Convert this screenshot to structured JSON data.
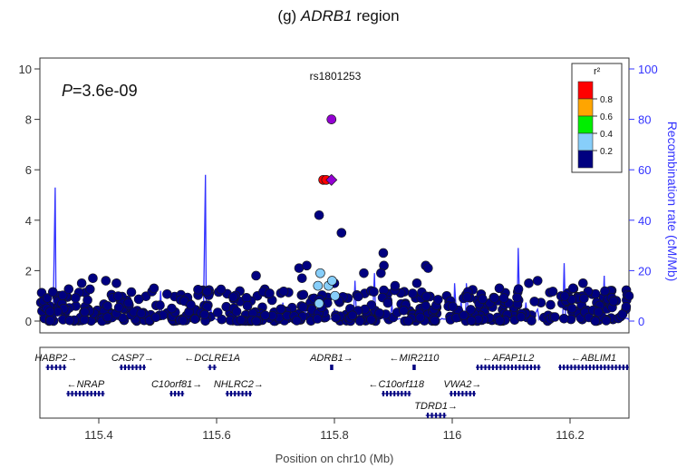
{
  "figure": {
    "title_prefix": "(g) ",
    "title_gene": "ADRB1",
    "title_suffix": " region"
  },
  "chart_data": {
    "type": "scatter",
    "title": "rs1801253",
    "pvalue_label": {
      "italic": "P",
      "rest": "=3.6e-09"
    },
    "xlabel": "Position on chr10 (Mb)",
    "ylabel_right": "Recombination rate (cM/Mb)",
    "xlim": [
      115.3,
      116.3
    ],
    "ylim": [
      0,
      10
    ],
    "y2lim": [
      0,
      100
    ],
    "x_ticks": [
      "115.4",
      "115.6",
      "115.8",
      "116",
      "116.2"
    ],
    "y_ticks": [
      "0",
      "2",
      "4",
      "6",
      "8",
      "10"
    ],
    "y2_ticks": [
      "0",
      "20",
      "40",
      "60",
      "80",
      "100"
    ],
    "grid": false,
    "legend": {
      "title": "r²",
      "placement": "top-right",
      "bins": [
        {
          "label": "0.8",
          "color": "#ff0000"
        },
        {
          "label": "0.6",
          "color": "#ffa500"
        },
        {
          "label": "0.4",
          "color": "#00ee00"
        },
        {
          "label": "0.2",
          "color": "#87cefa"
        },
        {
          "label": "",
          "color": "#000080"
        }
      ]
    },
    "colors": {
      "lead": "#9400d3",
      "recombination": "#3333ff",
      "high": "#ff0000",
      "low_mid": "#87cefa",
      "low": "#000080",
      "gene": "#000080"
    },
    "lead_snp": {
      "label": "rs1801253",
      "x": 115.795,
      "y": 8.0
    },
    "lead_diamond": {
      "x": 115.795,
      "y": 5.6
    },
    "highlighted_points": [
      {
        "x": 115.781,
        "y": 5.6,
        "r2": "high"
      },
      {
        "x": 115.786,
        "y": 5.6,
        "r2": "high"
      },
      {
        "x": 115.776,
        "y": 1.9,
        "r2": "low_mid"
      },
      {
        "x": 115.772,
        "y": 1.4,
        "r2": "low_mid"
      },
      {
        "x": 115.79,
        "y": 1.4,
        "r2": "low_mid"
      },
      {
        "x": 115.796,
        "y": 1.6,
        "r2": "low_mid"
      },
      {
        "x": 115.774,
        "y": 0.7,
        "r2": "low_mid"
      },
      {
        "x": 115.801,
        "y": 1.0,
        "r2": "low_mid"
      }
    ],
    "notable_points": [
      {
        "x": 115.774,
        "y": 4.2
      },
      {
        "x": 115.812,
        "y": 3.5
      },
      {
        "x": 115.883,
        "y": 2.7
      },
      {
        "x": 115.884,
        "y": 2.2
      },
      {
        "x": 115.879,
        "y": 1.9
      },
      {
        "x": 115.903,
        "y": 1.4
      },
      {
        "x": 115.667,
        "y": 1.8
      },
      {
        "x": 115.74,
        "y": 2.1
      },
      {
        "x": 115.753,
        "y": 2.2
      },
      {
        "x": 115.745,
        "y": 1.7
      },
      {
        "x": 115.85,
        "y": 1.9
      },
      {
        "x": 115.955,
        "y": 2.2
      },
      {
        "x": 115.959,
        "y": 2.1
      },
      {
        "x": 115.94,
        "y": 1.5
      },
      {
        "x": 115.8,
        "y": 1.5
      },
      {
        "x": 115.39,
        "y": 1.7
      },
      {
        "x": 115.412,
        "y": 1.6
      },
      {
        "x": 115.43,
        "y": 1.5
      },
      {
        "x": 115.371,
        "y": 1.5
      },
      {
        "x": 116.13,
        "y": 1.5
      },
      {
        "x": 116.145,
        "y": 1.6
      },
      {
        "x": 116.205,
        "y": 1.3
      },
      {
        "x": 116.222,
        "y": 1.5
      },
      {
        "x": 116.3,
        "y": 1.0
      },
      {
        "x": 115.69,
        "y": 1.1
      },
      {
        "x": 116.08,
        "y": 1.3
      }
    ],
    "recombination_peaks": [
      {
        "x": 115.326,
        "y": 53
      },
      {
        "x": 115.581,
        "y": 58
      },
      {
        "x": 115.835,
        "y": 16
      },
      {
        "x": 115.868,
        "y": 19
      },
      {
        "x": 116.024,
        "y": 15
      },
      {
        "x": 116.112,
        "y": 29
      },
      {
        "x": 116.19,
        "y": 23
      },
      {
        "x": 116.258,
        "y": 18
      },
      {
        "x": 116.004,
        "y": 15
      },
      {
        "x": 115.505,
        "y": 12
      }
    ],
    "genes": [
      {
        "name": "HABP2",
        "start": 115.31,
        "end": 115.345,
        "dir": "+",
        "row": 0
      },
      {
        "name": "CASP7",
        "start": 115.435,
        "end": 115.48,
        "dir": "+",
        "row": 0
      },
      {
        "name": "DCLRE1A",
        "start": 115.585,
        "end": 115.6,
        "dir": "-",
        "row": 0
      },
      {
        "name": "ADRB1",
        "start": 115.793,
        "end": 115.797,
        "dir": "+",
        "row": 0
      },
      {
        "name": "MIR2110",
        "start": 115.933,
        "end": 115.934,
        "dir": "-",
        "row": 0
      },
      {
        "name": "AFAP1L2",
        "start": 116.04,
        "end": 116.15,
        "dir": "-",
        "row": 0
      },
      {
        "name": "ABLIM1",
        "start": 116.18,
        "end": 116.3,
        "dir": "-",
        "row": 0
      },
      {
        "name": "NRAP",
        "start": 115.345,
        "end": 115.41,
        "dir": "-",
        "row": 1
      },
      {
        "name": "C10orf81",
        "start": 115.52,
        "end": 115.545,
        "dir": "+",
        "row": 1
      },
      {
        "name": "NHLRC2",
        "start": 115.615,
        "end": 115.66,
        "dir": "+",
        "row": 1
      },
      {
        "name": "C10orf118",
        "start": 115.88,
        "end": 115.93,
        "dir": "-",
        "row": 1
      },
      {
        "name": "VWA2",
        "start": 115.995,
        "end": 116.04,
        "dir": "+",
        "row": 1
      },
      {
        "name": "TDRD1",
        "start": 115.955,
        "end": 115.99,
        "dir": "+",
        "row": 2
      }
    ]
  }
}
